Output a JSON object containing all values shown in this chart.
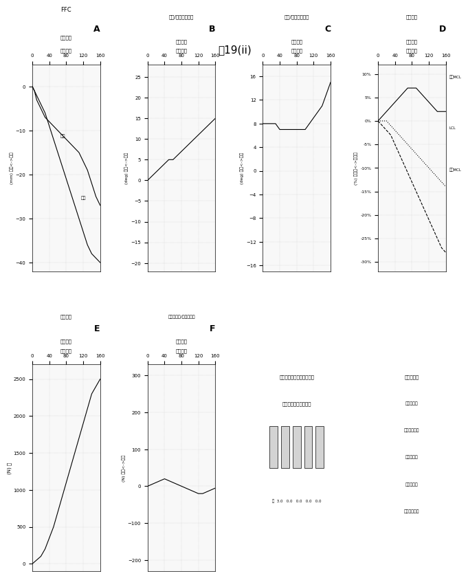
{
  "title": "図19(ii)",
  "title_fontsize": 11,
  "bg_color": "#ffffff",
  "panel_A": {
    "label": "A",
    "title_line1": "FFC",
    "title_line2": "湾曲角度",
    "ylabel": "(mm) 後方<->前方",
    "xlabel_rot": "湾曲角度",
    "yticks": [
      0,
      -10,
      -20,
      -30,
      -40
    ],
    "xticks": [
      0,
      40,
      80,
      120,
      160
    ],
    "xlim": [
      0,
      160
    ],
    "ylim": [
      -42,
      5
    ],
    "line_labels": [
      "中間",
      "後方"
    ],
    "curve1_x": [
      0,
      5,
      10,
      20,
      30,
      40,
      50,
      60,
      70,
      80,
      90,
      100,
      110,
      120,
      130,
      140,
      150,
      160
    ],
    "curve1_y": [
      0,
      -1,
      -3,
      -5,
      -7,
      -8,
      -9,
      -10,
      -11,
      -12,
      -13,
      -14,
      -15,
      -17,
      -19,
      -22,
      -25,
      -27
    ],
    "curve2_x": [
      0,
      5,
      10,
      20,
      30,
      40,
      50,
      60,
      70,
      80,
      90,
      100,
      110,
      120,
      130,
      140,
      150,
      160
    ],
    "curve2_y": [
      0,
      -1,
      -2,
      -4,
      -6,
      -9,
      -12,
      -15,
      -18,
      -21,
      -24,
      -27,
      -30,
      -33,
      -36,
      -38,
      -39,
      -40
    ]
  },
  "panel_B": {
    "label": "B",
    "title_line1": "内部/外部回転角度",
    "ylabel": "(deg) 後方<->前方",
    "xticks": [
      0,
      40,
      80,
      120,
      160
    ],
    "yticks": [
      25,
      20,
      15,
      10,
      5,
      0,
      -5,
      -10,
      -15,
      -20
    ],
    "xlim": [
      0,
      160
    ],
    "ylim": [
      -22,
      28
    ],
    "curve1_x": [
      0,
      10,
      20,
      30,
      40,
      50,
      60,
      70,
      80,
      90,
      100,
      110,
      120,
      130,
      140,
      150,
      160
    ],
    "curve1_y": [
      0,
      1,
      2,
      3,
      4,
      5,
      5,
      6,
      7,
      8,
      9,
      10,
      11,
      12,
      13,
      14,
      15
    ]
  },
  "panel_C": {
    "label": "C",
    "title_line1": "内反/外反回転角度",
    "ylabel": "(deg) 近位<->遠位",
    "xticks": [
      0,
      40,
      80,
      120,
      160
    ],
    "yticks": [
      16,
      12,
      8,
      4,
      0,
      -4,
      -8,
      -12,
      -16
    ],
    "xlim": [
      0,
      160
    ],
    "ylim": [
      -17,
      18
    ],
    "curve1_x": [
      0,
      10,
      20,
      30,
      40,
      50,
      60,
      70,
      80,
      90,
      100,
      110,
      120,
      130,
      140,
      150,
      160
    ],
    "curve1_y": [
      8,
      8,
      8,
      8,
      7,
      7,
      7,
      7,
      7,
      7,
      7,
      8,
      9,
      10,
      11,
      13,
      15
    ]
  },
  "panel_D": {
    "label": "D",
    "title_line1": "靱帯伸張",
    "title_line2": "湾曲角度",
    "ylabel": "(%) 伸張量<->弛緩量",
    "xticks": [
      0,
      40,
      80,
      120,
      160
    ],
    "yticks": [
      "10%",
      "5%",
      "0%",
      "-5%",
      "-10%",
      "-15%",
      "-20%",
      "-25%",
      "-30%"
    ],
    "ytick_vals": [
      10,
      5,
      0,
      -5,
      -10,
      -15,
      -20,
      -25,
      -30
    ],
    "xlim": [
      0,
      160
    ],
    "ylim": [
      -32,
      12
    ],
    "line_labels": [
      "前方MCL",
      "LCL",
      "後方MCL"
    ],
    "curve1_x": [
      0,
      10,
      20,
      30,
      40,
      50,
      60,
      70,
      80,
      90,
      100,
      110,
      120,
      130,
      140,
      150,
      160
    ],
    "curve1_y": [
      0,
      1,
      2,
      3,
      4,
      5,
      6,
      7,
      7,
      7,
      6,
      5,
      4,
      3,
      2,
      2,
      2
    ],
    "curve2_x": [
      0,
      10,
      20,
      30,
      40,
      50,
      60,
      70,
      80,
      90,
      100,
      110,
      120,
      130,
      140,
      150,
      160
    ],
    "curve2_y": [
      0,
      -1,
      -2,
      -3,
      -5,
      -7,
      -9,
      -11,
      -13,
      -15,
      -17,
      -19,
      -21,
      -23,
      -25,
      -27,
      -28
    ],
    "curve3_x": [
      0,
      10,
      20,
      30,
      40,
      50,
      60,
      70,
      80,
      90,
      100,
      110,
      120,
      130,
      140,
      150,
      160
    ],
    "curve3_y": [
      0,
      0,
      0,
      -1,
      -2,
      -3,
      -4,
      -5,
      -6,
      -7,
      -8,
      -9,
      -10,
      -11,
      -12,
      -13,
      -14
    ]
  },
  "panel_E": {
    "label": "E",
    "title_line1": "四頭筋力",
    "ylabel": "(N) 力",
    "xticks": [
      0,
      40,
      80,
      120,
      160
    ],
    "yticks": [
      2500,
      2000,
      1500,
      1000,
      500,
      0
    ],
    "xlim": [
      0,
      160
    ],
    "ylim": [
      -100,
      2700
    ],
    "curve1_x": [
      0,
      10,
      20,
      30,
      40,
      50,
      60,
      70,
      80,
      90,
      100,
      110,
      120,
      130,
      140,
      150,
      160
    ],
    "curve1_y": [
      0,
      50,
      100,
      200,
      350,
      500,
      700,
      900,
      1100,
      1300,
      1500,
      1700,
      1900,
      2100,
      2300,
      2400,
      2500
    ]
  },
  "panel_F": {
    "label": "F",
    "title_line1": "膝蓋骨中間/側方剪断力",
    "ylabel": "(N) 前方<->後方",
    "xticks": [
      0,
      40,
      80,
      120,
      160
    ],
    "yticks": [
      300,
      200,
      100,
      0,
      -100,
      -200
    ],
    "xlim": [
      0,
      160
    ],
    "ylim": [
      -230,
      330
    ],
    "curve1_x": [
      0,
      10,
      20,
      30,
      40,
      50,
      60,
      70,
      80,
      90,
      100,
      110,
      120,
      130,
      140,
      150,
      160
    ],
    "curve1_y": [
      0,
      5,
      10,
      15,
      20,
      15,
      10,
      5,
      0,
      -5,
      -10,
      -15,
      -20,
      -20,
      -15,
      -10,
      -5
    ]
  },
  "scrollbar_text_line1": "スクロールバーを動かして",
  "scrollbar_text_line2": "ファクターを調整する",
  "scrollbar_values": [
    "重  3.0",
    "0.0",
    "0.0",
    "0.0",
    "0.0"
  ],
  "factor_title": "ファクター",
  "factor_items": [
    "大腿骨内反",
    "大腿骨正回転",
    "膝蓋骨傾斜",
    "膝蓋骨内反",
    "膝蓋骨正回転"
  ]
}
